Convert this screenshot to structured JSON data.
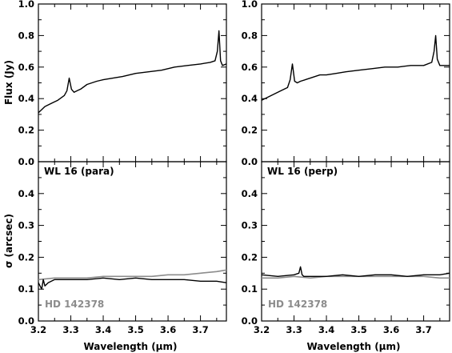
{
  "figure": {
    "xlabel": "Wavelength (μm)",
    "flux_ylabel": "Flux (Jy)",
    "sigma_ylabel": "σ (arcsec)"
  },
  "chart_data": [
    {
      "type": "line",
      "panel": "top-left",
      "xlim": [
        3.2,
        3.78
      ],
      "ylim": [
        0.0,
        1.0
      ],
      "yticks": [
        0.0,
        0.2,
        0.4,
        0.6,
        0.8,
        1.0
      ],
      "ytick_labels": [
        "0.0",
        "0.2",
        "0.4",
        "0.6",
        "0.8",
        "1.0"
      ],
      "ylabel": "Flux (Jy)",
      "series": [
        {
          "color": "#000000",
          "x": [
            3.2,
            3.22,
            3.24,
            3.26,
            3.28,
            3.288,
            3.295,
            3.302,
            3.31,
            3.32,
            3.33,
            3.35,
            3.38,
            3.4,
            3.43,
            3.46,
            3.5,
            3.54,
            3.58,
            3.62,
            3.66,
            3.7,
            3.73,
            3.745,
            3.752,
            3.757,
            3.762,
            3.768,
            3.78
          ],
          "y": [
            0.31,
            0.35,
            0.37,
            0.39,
            0.42,
            0.45,
            0.53,
            0.46,
            0.44,
            0.45,
            0.46,
            0.49,
            0.51,
            0.52,
            0.53,
            0.54,
            0.56,
            0.57,
            0.58,
            0.6,
            0.61,
            0.62,
            0.63,
            0.64,
            0.7,
            0.83,
            0.64,
            0.61,
            0.62
          ]
        }
      ]
    },
    {
      "type": "line",
      "panel": "top-right",
      "xlim": [
        3.2,
        3.78
      ],
      "ylim": [
        0.0,
        1.0
      ],
      "yticks": [
        0.0,
        0.2,
        0.4,
        0.6,
        0.8,
        1.0
      ],
      "ytick_labels": [
        "0.0",
        "0.2",
        "0.4",
        "0.6",
        "0.8",
        "1.0"
      ],
      "series": [
        {
          "color": "#000000",
          "x": [
            3.2,
            3.22,
            3.24,
            3.26,
            3.28,
            3.288,
            3.295,
            3.302,
            3.31,
            3.32,
            3.35,
            3.38,
            3.4,
            3.43,
            3.46,
            3.5,
            3.54,
            3.58,
            3.62,
            3.66,
            3.7,
            3.725,
            3.732,
            3.737,
            3.742,
            3.75,
            3.78
          ],
          "y": [
            0.39,
            0.41,
            0.43,
            0.45,
            0.47,
            0.52,
            0.62,
            0.51,
            0.5,
            0.51,
            0.53,
            0.55,
            0.55,
            0.56,
            0.57,
            0.58,
            0.59,
            0.6,
            0.6,
            0.61,
            0.61,
            0.63,
            0.7,
            0.8,
            0.65,
            0.61,
            0.61
          ]
        }
      ]
    },
    {
      "type": "line",
      "panel": "bottom-left",
      "title": "WL 16 (para)",
      "annotation": "HD 142378",
      "xlim": [
        3.2,
        3.78
      ],
      "ylim": [
        0.0,
        0.5
      ],
      "xticks": [
        3.2,
        3.3,
        3.4,
        3.5,
        3.6,
        3.7
      ],
      "xtick_labels": [
        "3.2",
        "3.3",
        "3.4",
        "3.5",
        "3.6",
        "3.7"
      ],
      "yticks": [
        0.0,
        0.1,
        0.2,
        0.3,
        0.4
      ],
      "ytick_labels": [
        "0.0",
        "0.1",
        "0.2",
        "0.3",
        "0.4"
      ],
      "xlabel": "Wavelength (μm)",
      "ylabel": "σ (arcsec)",
      "series": [
        {
          "name": "WL 16 (para)",
          "color": "#000000",
          "x": [
            3.2,
            3.21,
            3.215,
            3.22,
            3.23,
            3.25,
            3.28,
            3.3,
            3.35,
            3.4,
            3.45,
            3.5,
            3.55,
            3.6,
            3.65,
            3.7,
            3.75,
            3.78
          ],
          "y": [
            0.12,
            0.1,
            0.13,
            0.11,
            0.12,
            0.13,
            0.13,
            0.13,
            0.13,
            0.135,
            0.13,
            0.135,
            0.13,
            0.13,
            0.13,
            0.125,
            0.125,
            0.12
          ]
        },
        {
          "name": "HD 142378",
          "color": "#8c8c8c",
          "x": [
            3.2,
            3.25,
            3.3,
            3.35,
            3.4,
            3.45,
            3.5,
            3.55,
            3.6,
            3.65,
            3.7,
            3.75,
            3.78
          ],
          "y": [
            0.13,
            0.135,
            0.135,
            0.135,
            0.14,
            0.14,
            0.14,
            0.14,
            0.145,
            0.145,
            0.15,
            0.155,
            0.16
          ]
        }
      ]
    },
    {
      "type": "line",
      "panel": "bottom-right",
      "title": "WL 16 (perp)",
      "annotation": "HD 142378",
      "xlim": [
        3.2,
        3.78
      ],
      "ylim": [
        0.0,
        0.5
      ],
      "xticks": [
        3.2,
        3.3,
        3.4,
        3.5,
        3.6,
        3.7
      ],
      "xtick_labels": [
        "3.2",
        "3.3",
        "3.4",
        "3.5",
        "3.6",
        "3.7"
      ],
      "yticks": [
        0.0,
        0.1,
        0.2,
        0.3,
        0.4
      ],
      "ytick_labels": [
        "0.0",
        "0.1",
        "0.2",
        "0.3",
        "0.4"
      ],
      "xlabel": "Wavelength (μm)",
      "series": [
        {
          "name": "WL 16 (perp)",
          "color": "#000000",
          "x": [
            3.2,
            3.25,
            3.3,
            3.315,
            3.32,
            3.325,
            3.33,
            3.35,
            3.4,
            3.45,
            3.5,
            3.55,
            3.6,
            3.65,
            3.7,
            3.75,
            3.78
          ],
          "y": [
            0.145,
            0.14,
            0.145,
            0.15,
            0.17,
            0.145,
            0.14,
            0.14,
            0.14,
            0.145,
            0.14,
            0.145,
            0.145,
            0.14,
            0.145,
            0.145,
            0.15
          ]
        },
        {
          "name": "HD 142378",
          "color": "#8c8c8c",
          "x": [
            3.2,
            3.25,
            3.3,
            3.35,
            3.4,
            3.45,
            3.5,
            3.55,
            3.6,
            3.65,
            3.7,
            3.75,
            3.78
          ],
          "y": [
            0.135,
            0.135,
            0.14,
            0.135,
            0.14,
            0.14,
            0.14,
            0.14,
            0.14,
            0.14,
            0.14,
            0.135,
            0.135
          ]
        }
      ]
    }
  ]
}
